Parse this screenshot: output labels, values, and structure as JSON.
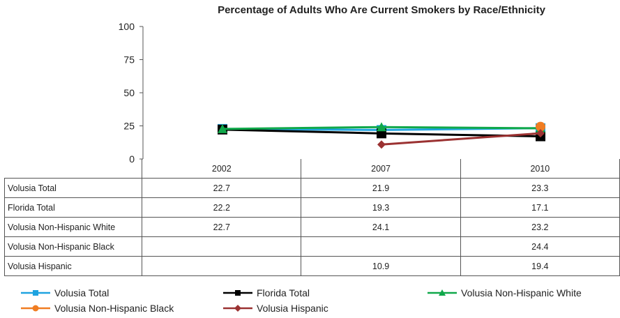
{
  "chart_data": {
    "type": "line",
    "title": "Percentage of Adults Who Are Current Smokers by Race/Ethnicity",
    "categories": [
      "2002",
      "2007",
      "2010"
    ],
    "ylim": [
      0,
      100
    ],
    "yticks": [
      0,
      25,
      50,
      75,
      100
    ],
    "grid": false,
    "legend_position": "bottom",
    "series": [
      {
        "name": "Volusia Total",
        "values": [
          22.7,
          21.9,
          23.3
        ],
        "color": "#1fa3e0",
        "marker": "square"
      },
      {
        "name": "Florida Total",
        "values": [
          22.2,
          19.3,
          17.1
        ],
        "color": "#000000",
        "marker": "square"
      },
      {
        "name": "Volusia Non-Hispanic White",
        "values": [
          22.7,
          24.1,
          23.2
        ],
        "color": "#10a84a",
        "marker": "triangle"
      },
      {
        "name": "Volusia Non-Hispanic Black",
        "values": [
          null,
          null,
          24.4
        ],
        "color": "#f07d22",
        "marker": "circle"
      },
      {
        "name": "Volusia Hispanic",
        "values": [
          null,
          10.9,
          19.4
        ],
        "color": "#9b3232",
        "marker": "diamond"
      }
    ],
    "table": {
      "rows": [
        {
          "label": "Volusia Total",
          "cells": [
            "22.7",
            "21.9",
            "23.3"
          ]
        },
        {
          "label": "Florida Total",
          "cells": [
            "22.2",
            "19.3",
            "17.1"
          ]
        },
        {
          "label": "Volusia Non-Hispanic White",
          "cells": [
            "22.7",
            "24.1",
            "23.2"
          ]
        },
        {
          "label": "Volusia Non-Hispanic Black",
          "cells": [
            "",
            "",
            "24.4"
          ]
        },
        {
          "label": "Volusia Hispanic",
          "cells": [
            "",
            "10.9",
            "19.4"
          ]
        }
      ]
    }
  }
}
